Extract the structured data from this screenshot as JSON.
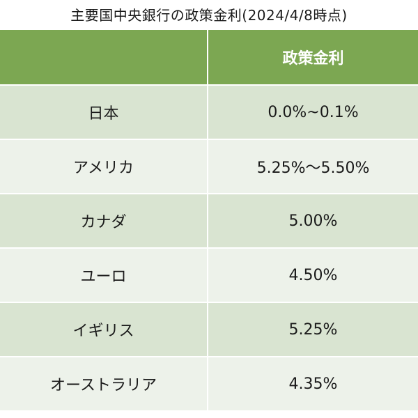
{
  "title": "主要国中央銀行の政策金利(2024/4/8時点)",
  "table": {
    "columns": [
      "",
      "政策金利"
    ],
    "rows": [
      {
        "country": "日本",
        "rate": "0.0%~0.1%"
      },
      {
        "country": "アメリカ",
        "rate": "5.25%〜5.50%"
      },
      {
        "country": "カナダ",
        "rate": "5.00%"
      },
      {
        "country": "ユーロ",
        "rate": "4.50%"
      },
      {
        "country": "イギリス",
        "rate": "5.25%"
      },
      {
        "country": "オーストラリア",
        "rate": "4.35%"
      }
    ]
  },
  "colors": {
    "header_bg": "#7ca752",
    "row_dark": "#d9e4d1",
    "row_light": "#edf2ea"
  }
}
